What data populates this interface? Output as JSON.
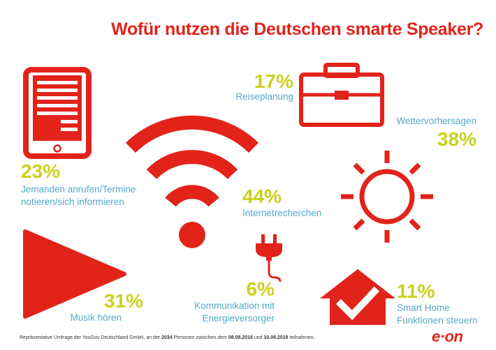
{
  "title": "Wofür nutzen die Deutschen smarte Speaker?",
  "chart_data": {
    "type": "infographic",
    "title": "Wofür nutzen die Deutschen smarte Speaker?",
    "unit": "%",
    "items": [
      {
        "label": "Jemanden anrufen/Termine notieren/sich informieren",
        "value": 23,
        "display": "23%",
        "line1": "Jemanden anrufen/Termine",
        "line2": "notieren/sich informieren",
        "icon": "tablet-icon"
      },
      {
        "label": "Reiseplanung",
        "value": 17,
        "display": "17%",
        "icon": "briefcase-icon"
      },
      {
        "label": "Wettervorhersagen",
        "value": 38,
        "display": "38%",
        "icon": "sun-icon"
      },
      {
        "label": "Internetrecherchen",
        "value": 44,
        "display": "44%",
        "icon": "wifi-icon"
      },
      {
        "label": "Musik hören",
        "value": 31,
        "display": "31%",
        "icon": "play-icon"
      },
      {
        "label": "Kommunikation mit Energieversorger",
        "value": 6,
        "display": "6%",
        "line1": "Kommunikation mit",
        "line2": "Energieversorger",
        "icon": "plug-icon"
      },
      {
        "label": "Smart Home Funktionen steuern",
        "value": 11,
        "display": "11%",
        "line1": "Smart Home",
        "line2": "Funktionen steuern",
        "icon": "smart-home-icon"
      }
    ]
  },
  "footnote": {
    "part1": "Repräsentative Umfrage der YouGov Deutschland GmbH, an der ",
    "count": "2034",
    "part2": " Personen zwischen dem ",
    "date1": "08.08.2018",
    "part3": " und ",
    "date2": "10.08.2018",
    "part4": " teilnahmen."
  },
  "brand": "e·on",
  "colors": {
    "red": "#e2231a",
    "value": "#c9d11e",
    "label": "#52a9c9"
  }
}
